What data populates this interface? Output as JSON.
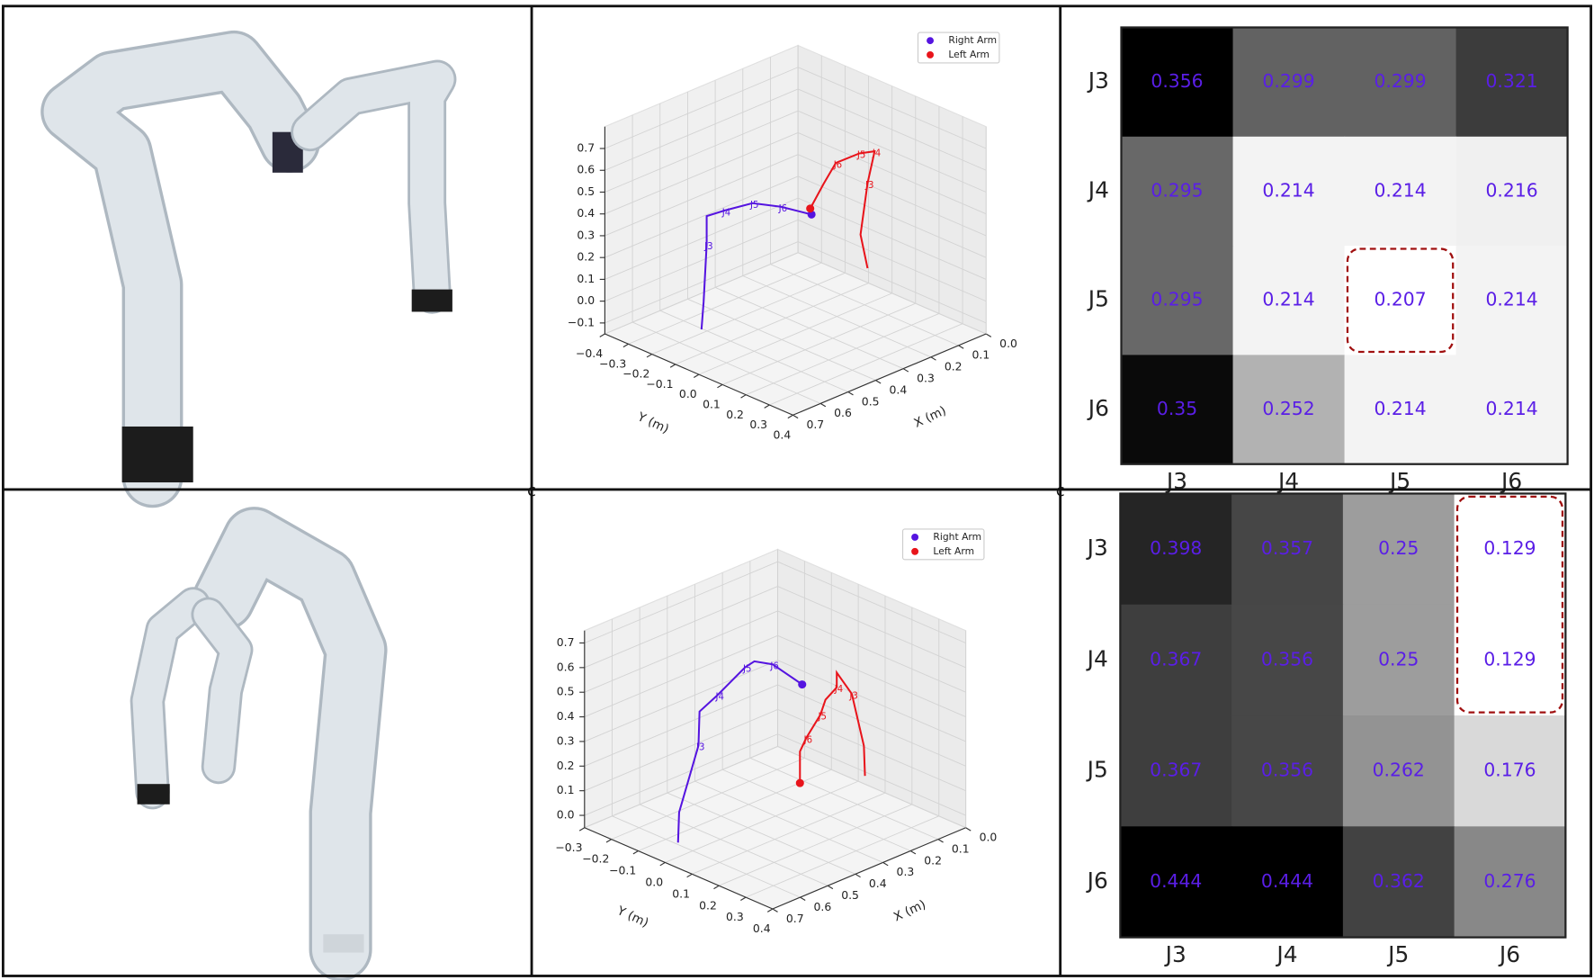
{
  "chart_data": [
    {
      "type": "line3d",
      "xlabel": "X (m)",
      "ylabel": "Y (m)",
      "xlim": [
        0,
        0.7
      ],
      "ylim": [
        -0.4,
        0.4
      ],
      "zlim": [
        -0.15,
        0.8
      ],
      "xticks": [
        0.7,
        0.6,
        0.5,
        0.4,
        0.3,
        0.2,
        0.1,
        {
          "value": 0,
          "label": "0.0"
        }
      ],
      "yticks": [
        {
          "value": -0.4,
          "label": "−0.4"
        },
        {
          "value": -0.3,
          "label": "−0.3"
        },
        {
          "value": -0.2,
          "label": "−0.2"
        },
        {
          "value": -0.1,
          "label": "−0.1"
        },
        {
          "value": 0,
          "label": "0.0"
        },
        0.1,
        0.2,
        0.3,
        0.4
      ],
      "zticks": [
        {
          "value": -0.1,
          "label": "−0.1"
        },
        {
          "value": 0,
          "label": "0.0"
        },
        0.1,
        0.2,
        0.3,
        0.4,
        0.5,
        0.6,
        0.7
      ],
      "grid": true,
      "legend": "upper right",
      "series": [
        {
          "name": "Right Arm",
          "color": "#5514e0",
          "marker_at": "end",
          "x": [
            0.55,
            0.55,
            0.55,
            0.55,
            0.55,
            0.55,
            0.55,
            0.55
          ],
          "y": [
            -0.165,
            -0.156,
            -0.143,
            -0.143,
            -0.068,
            0.052,
            0.173,
            0.303
          ],
          "z": [
            -0.1,
            0.03,
            0.3,
            0.43,
            0.49,
            0.58,
            0.62,
            0.645
          ],
          "point_labels": [
            null,
            null,
            "J3",
            null,
            "J4",
            "J5",
            "J6",
            null
          ]
        },
        {
          "name": "Left Arm",
          "color": "#e8141b",
          "marker_at": "start",
          "x": [
            0.3,
            0.3,
            0.3,
            0.3,
            0.3,
            0.3,
            0.3,
            0.3
          ],
          "y": [
            0.004,
            0.061,
            0.113,
            0.213,
            0.278,
            0.248,
            0.218,
            0.248
          ],
          "z": [
            0.4,
            0.54,
            0.66,
            0.75,
            0.79,
            0.63,
            0.38,
            0.24
          ],
          "point_labels": [
            null,
            null,
            "J6",
            "J5",
            "J4",
            "J3",
            null,
            null
          ]
        }
      ]
    },
    {
      "type": "heatmap",
      "rows": [
        "J3",
        "J4",
        "J5",
        "J6"
      ],
      "columns": [
        "J3",
        "J4",
        "J5",
        "J6"
      ],
      "values": [
        [
          0.356,
          0.299,
          0.299,
          0.321
        ],
        [
          0.295,
          0.214,
          0.214,
          0.216
        ],
        [
          0.295,
          0.214,
          0.207,
          0.214
        ],
        [
          0.35,
          0.252,
          0.214,
          0.214
        ]
      ],
      "text_color": "#5a1ee6",
      "highlight": [
        [
          2,
          2
        ]
      ],
      "highlight_color": "#a01010"
    },
    {
      "type": "line3d",
      "xlabel": "X (m)",
      "ylabel": "Y (m)",
      "xlim": [
        0,
        0.7
      ],
      "ylim": [
        -0.3,
        0.4
      ],
      "zlim": [
        -0.05,
        0.75
      ],
      "xticks": [
        0.7,
        0.6,
        0.5,
        0.4,
        0.3,
        0.2,
        0.1,
        {
          "value": 0,
          "label": "0.0"
        }
      ],
      "yticks": [
        {
          "value": -0.3,
          "label": "−0.3"
        },
        {
          "value": -0.2,
          "label": "−0.2"
        },
        {
          "value": -0.1,
          "label": "−0.1"
        },
        {
          "value": 0,
          "label": "0.0"
        },
        0.1,
        0.2,
        0.3,
        0.4
      ],
      "zticks": [
        {
          "value": 0,
          "label": "0.0"
        },
        0.1,
        0.2,
        0.3,
        0.4,
        0.5,
        0.6,
        0.7
      ],
      "grid": true,
      "legend": "upper right",
      "series": [
        {
          "name": "Right Arm",
          "color": "#5514e0",
          "marker_at": "end",
          "x": [
            0.55,
            0.55,
            0.55,
            0.55,
            0.55,
            0.55,
            0.55,
            0.55,
            0.55
          ],
          "y": [
            -0.106,
            -0.102,
            -0.03,
            -0.026,
            0.042,
            0.144,
            0.178,
            0.246,
            0.356
          ],
          "z": [
            -0.09,
            0.035,
            0.34,
            0.48,
            0.58,
            0.74,
            0.78,
            0.8,
            0.77
          ],
          "point_labels": [
            null,
            null,
            "J3",
            null,
            "J4",
            "J5",
            null,
            "J6",
            null
          ]
        },
        {
          "name": "Left Arm",
          "color": "#e8141b",
          "marker_at": "start",
          "x": [
            0.3,
            0.3,
            0.3,
            0.3,
            0.3,
            0.3,
            0.3,
            0.3,
            0.3,
            0.3
          ],
          "y": [
            0.091,
            0.091,
            0.114,
            0.167,
            0.186,
            0.228,
            0.228,
            0.284,
            0.329,
            0.333
          ],
          "z": [
            0.127,
            0.255,
            0.32,
            0.44,
            0.51,
            0.58,
            0.64,
            0.58,
            0.39,
            0.27
          ],
          "point_labels": [
            null,
            null,
            "J6",
            "J5",
            null,
            "J4",
            null,
            "J3",
            null,
            null
          ]
        }
      ]
    },
    {
      "type": "heatmap",
      "rows": [
        "J3",
        "J4",
        "J5",
        "J6"
      ],
      "columns": [
        "J3",
        "J4",
        "J5",
        "J6"
      ],
      "values": [
        [
          0.398,
          0.357,
          0.25,
          0.129
        ],
        [
          0.367,
          0.356,
          0.25,
          0.129
        ],
        [
          0.367,
          0.356,
          0.262,
          0.176
        ],
        [
          0.444,
          0.444,
          0.362,
          0.276
        ]
      ],
      "text_color": "#5a1ee6",
      "highlight": [
        [
          0,
          3
        ],
        [
          1,
          3
        ]
      ],
      "highlight_color": "#a01010"
    }
  ],
  "panel_marks": [
    "c",
    "c"
  ]
}
